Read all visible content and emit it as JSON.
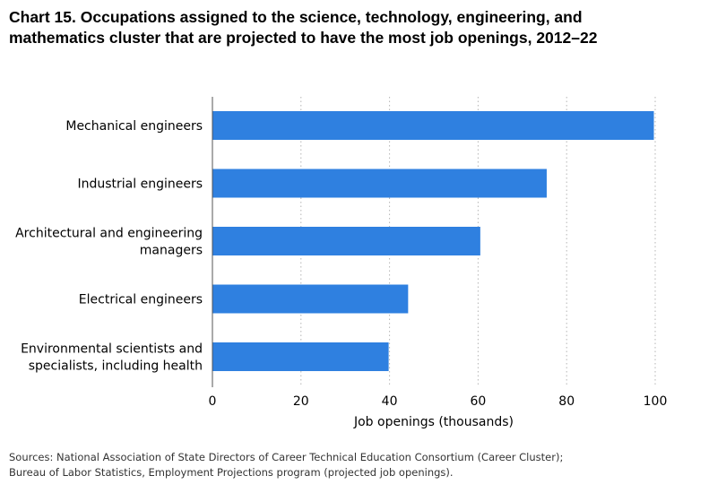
{
  "title_lines": [
    "Chart 15. Occupations assigned to the science, technology, engineering, and",
    "mathematics cluster that are projected to have the most job openings, 2012–22"
  ],
  "source_lines": [
    "Sources: National Association of State Directors of Career Technical Education Consortium (Career Cluster);",
    "Bureau of Labor Statistics, Employment Projections program (projected job openings)."
  ],
  "chart_data": {
    "type": "bar",
    "orientation": "horizontal",
    "title": "Chart 15. Occupations assigned to the science, technology, engineering, and mathematics cluster that are projected to have the most job openings, 2012–22",
    "xlabel": "Job openings (thousands)",
    "ylabel": "",
    "categories": [
      [
        "Mechanical engineers"
      ],
      [
        "Industrial engineers"
      ],
      [
        "Architectural and engineering",
        "managers"
      ],
      [
        "Electrical engineers"
      ],
      [
        "Environmental scientists and",
        "specialists, including health"
      ]
    ],
    "values": [
      99.7,
      75.5,
      60.5,
      44.2,
      39.8
    ],
    "xlim": [
      0,
      100
    ],
    "xticks": [
      0,
      20,
      40,
      60,
      80,
      100
    ],
    "bar_color": "#2f80e0",
    "grid": "vertical dotted",
    "legend": "none"
  }
}
